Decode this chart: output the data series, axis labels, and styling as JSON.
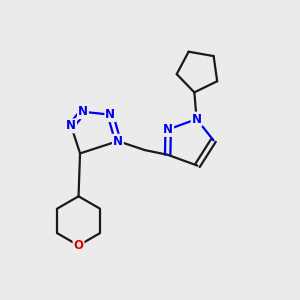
{
  "bg_color": "#ebebeb",
  "bond_color": "#1a1a1a",
  "N_color": "#0000ee",
  "O_color": "#dd0000",
  "lw": 1.6,
  "fs": 8.5,
  "xlim": [
    0,
    10
  ],
  "ylim": [
    0,
    10
  ]
}
